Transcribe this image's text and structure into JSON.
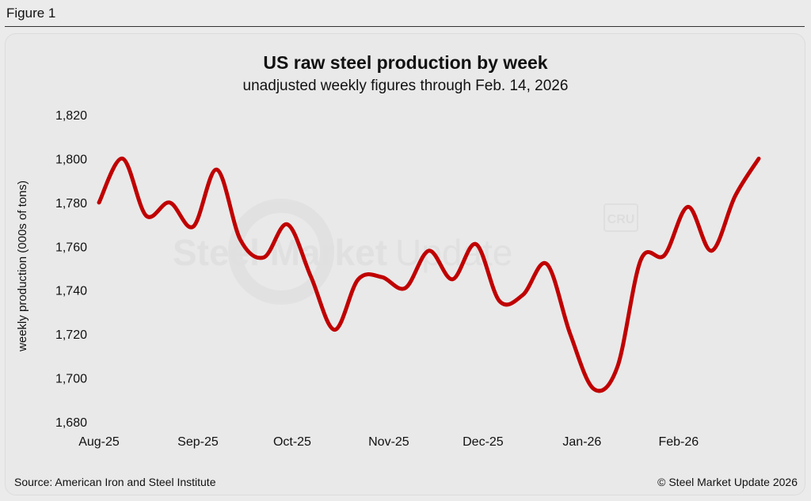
{
  "figure_label": "Figure 1",
  "footer": {
    "source": "Source: American Iron and Steel Institute",
    "copyright": "© Steel Market Update 2026"
  },
  "watermark": {
    "brand_bold": "Steel Market",
    "brand_light": "Update",
    "badge": "CRU"
  },
  "colors": {
    "line": "#c00000",
    "background": "#ebebeb",
    "text": "#111111"
  },
  "chart_data": {
    "type": "line",
    "title": "US raw steel production by week",
    "subtitle": "unadjusted weekly figures through Feb. 14, 2026",
    "xlabel": "",
    "ylabel": "weekly production (000s of tons)",
    "ylim": [
      1680,
      1820
    ],
    "yticks": [
      1680,
      1700,
      1720,
      1740,
      1760,
      1780,
      1800,
      1820
    ],
    "ytick_labels": [
      "1,680",
      "1,700",
      "1,720",
      "1,740",
      "1,760",
      "1,780",
      "1,800",
      "1,820"
    ],
    "grid": false,
    "x_domain": [
      0,
      28
    ],
    "x_ticks": [
      {
        "label": "Aug-25",
        "pos": 0
      },
      {
        "label": "Sep-25",
        "pos": 4.2
      },
      {
        "label": "Oct-25",
        "pos": 8.2
      },
      {
        "label": "Nov-25",
        "pos": 12.3
      },
      {
        "label": "Dec-25",
        "pos": 16.3
      },
      {
        "label": "Jan-26",
        "pos": 20.5
      },
      {
        "label": "Feb-26",
        "pos": 24.6
      }
    ],
    "series": [
      {
        "name": "weekly production",
        "week_start": "2025-08-02",
        "x": [
          0,
          1,
          2,
          3,
          4,
          5,
          6,
          7,
          8,
          9,
          10,
          11,
          12,
          13,
          14,
          15,
          16,
          17,
          18,
          19,
          20,
          21,
          22,
          23,
          24,
          25,
          26,
          27,
          28
        ],
        "values": [
          1780,
          1800,
          1774,
          1780,
          1769,
          1795,
          1763,
          1755,
          1770,
          1746,
          1722,
          1745,
          1746,
          1741,
          1758,
          1745,
          1761,
          1735,
          1738,
          1752,
          1720,
          1695,
          1705,
          1754,
          1756,
          1778,
          1758,
          1783,
          1800
        ]
      }
    ]
  }
}
